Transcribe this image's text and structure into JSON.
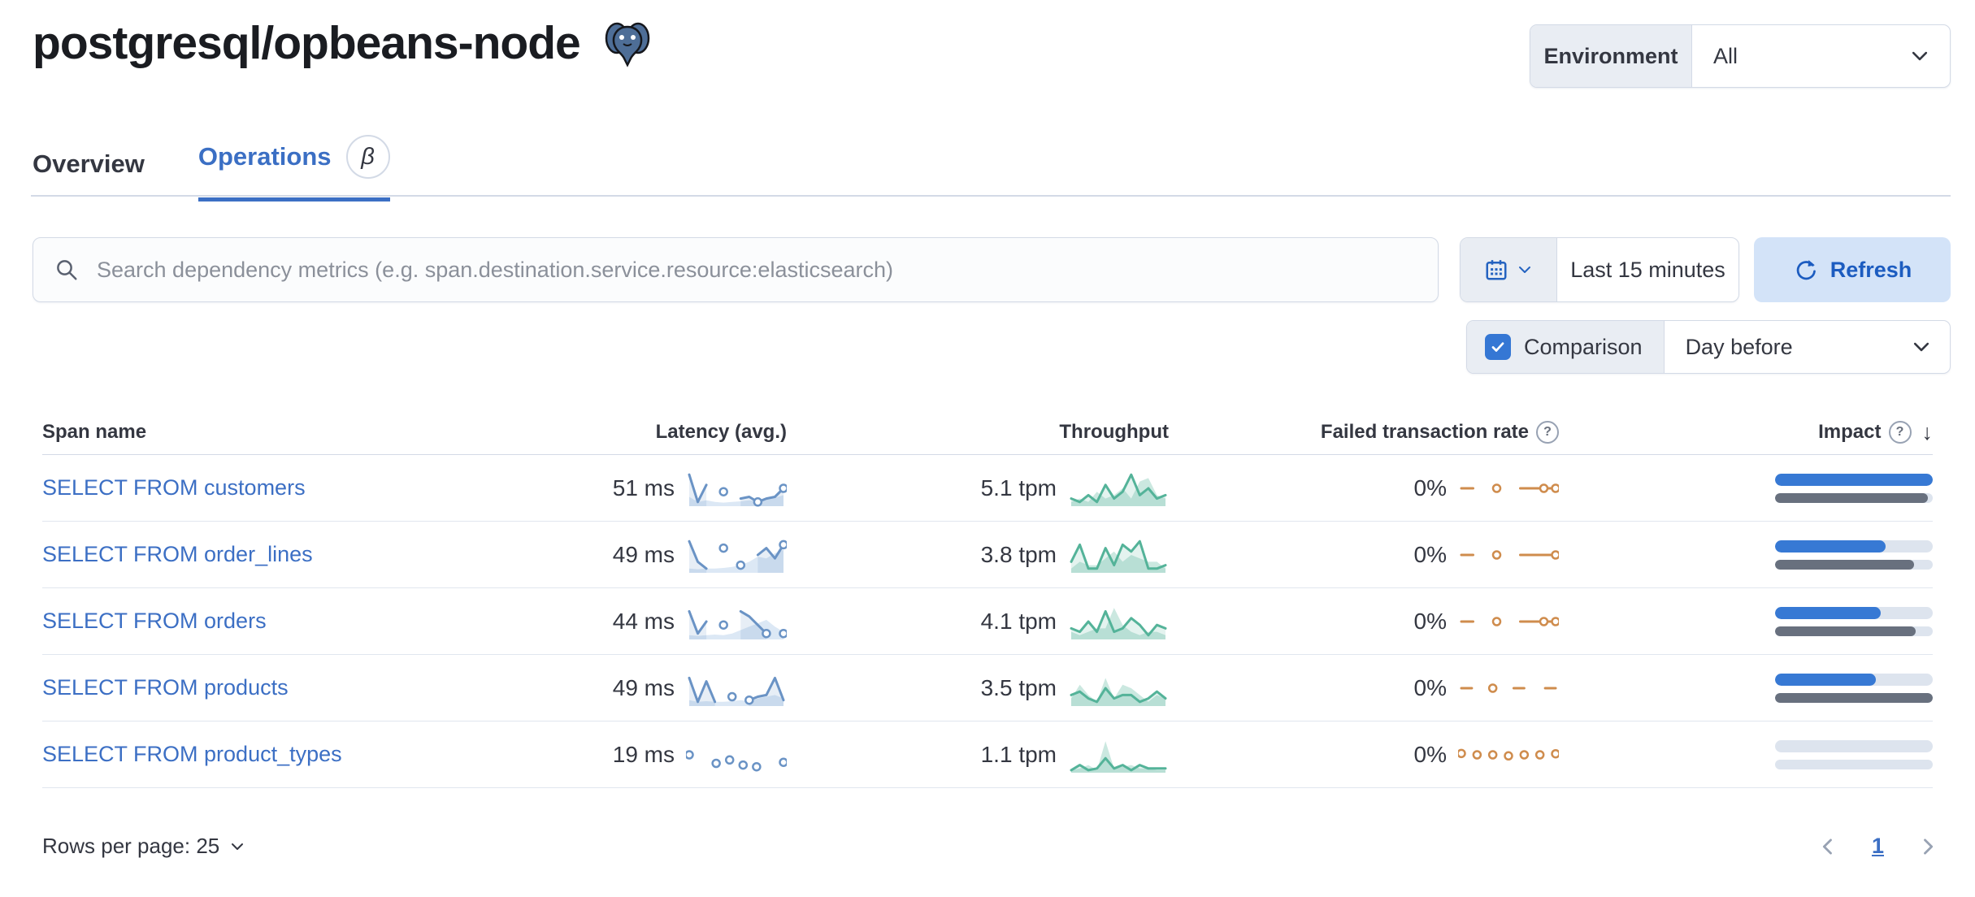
{
  "header": {
    "title": "postgresql/opbeans-node",
    "logo": "postgresql-elephant-icon",
    "environment_label": "Environment",
    "environment_value": "All"
  },
  "tabs": [
    {
      "label": "Overview",
      "active": false
    },
    {
      "label": "Operations",
      "active": true,
      "beta": "β"
    }
  ],
  "toolbar": {
    "search_placeholder": "Search dependency metrics (e.g. span.destination.service.resource:elasticsearch)",
    "time_range": "Last 15 minutes",
    "refresh_label": "Refresh",
    "comparison_label": "Comparison",
    "comparison_checked": true,
    "comparison_value": "Day before"
  },
  "table": {
    "columns": [
      "Span name",
      "Latency (avg.)",
      "Throughput",
      "Failed transaction rate",
      "Impact"
    ],
    "sort": {
      "column": "Impact",
      "direction": "desc"
    },
    "rows": [
      {
        "span_name": "SELECT FROM customers",
        "latency": "51 ms",
        "latency_spark": {
          "current": [
            9,
            1,
            6,
            null,
            4,
            null,
            2,
            2.5,
            1,
            2,
            2.5,
            5
          ],
          "previous": [
            2.5,
            1,
            1.5,
            1,
            0.8,
            1,
            1.2,
            1.5,
            1.2,
            1.8,
            2.2,
            3
          ],
          "markers": [
            4,
            8,
            11
          ]
        },
        "throughput": "5.1 tpm",
        "throughput_spark": {
          "current": [
            2,
            1,
            3,
            1,
            6,
            2,
            4,
            9,
            3,
            5,
            2,
            3
          ],
          "previous": [
            1,
            2,
            1,
            4,
            2,
            3,
            5,
            2,
            7,
            8,
            3,
            2
          ]
        },
        "failed_rate": "0%",
        "failed_spark": {
          "points": [
            5,
            5,
            null,
            5,
            null,
            5,
            5,
            5,
            5
          ],
          "markers": [
            3,
            7,
            8
          ]
        },
        "impact_current": 1.0,
        "impact_previous": 0.97
      },
      {
        "span_name": "SELECT FROM order_lines",
        "latency": "49 ms",
        "latency_spark": {
          "current": [
            9,
            3,
            1,
            null,
            7,
            null,
            2,
            null,
            5,
            7,
            4,
            8
          ],
          "previous": [
            1,
            0.8,
            1,
            1,
            1.2,
            1.5,
            2,
            3,
            4.5,
            4,
            5.5,
            6.5
          ],
          "markers": [
            11
          ]
        },
        "throughput": "3.8 tpm",
        "throughput_spark": {
          "current": [
            3,
            8,
            1,
            1,
            7,
            2,
            8,
            6,
            9,
            1,
            1,
            2
          ],
          "previous": [
            1,
            3,
            2,
            2,
            4,
            6,
            3,
            5,
            4,
            3,
            3,
            1
          ]
        },
        "failed_rate": "0%",
        "failed_spark": {
          "points": [
            5,
            5,
            null,
            5,
            null,
            5,
            5,
            5,
            5
          ],
          "markers": [
            3,
            8
          ]
        },
        "impact_current": 0.7,
        "impact_previous": 0.88
      },
      {
        "span_name": "SELECT FROM orders",
        "latency": "44 ms",
        "latency_spark": {
          "current": [
            8,
            1.5,
            5,
            null,
            4,
            null,
            8,
            6.5,
            4,
            1.5,
            null,
            1.5
          ],
          "previous": [
            1,
            0.8,
            1,
            1.2,
            1,
            1.5,
            2.5,
            3.5,
            4.5,
            5.5,
            3.5,
            2
          ],
          "markers": [
            4,
            9,
            11
          ]
        },
        "throughput": "4.1 tpm",
        "throughput_spark": {
          "current": [
            3,
            2,
            5,
            2,
            8,
            2,
            3,
            6,
            4,
            1,
            4,
            3
          ],
          "previous": [
            2,
            1,
            2,
            3,
            3,
            9,
            4,
            2,
            1,
            2,
            2,
            1
          ]
        },
        "failed_rate": "0%",
        "failed_spark": {
          "points": [
            5,
            5,
            null,
            5,
            null,
            5,
            5,
            5,
            5
          ],
          "markers": [
            3,
            7,
            8
          ]
        },
        "impact_current": 0.67,
        "impact_previous": 0.89
      },
      {
        "span_name": "SELECT FROM products",
        "latency": "49 ms",
        "latency_spark": {
          "current": [
            8,
            1,
            7,
            1,
            null,
            2.5,
            null,
            1.5,
            2.5,
            3,
            8,
            1.5
          ],
          "previous": [
            1.5,
            1,
            1.2,
            1,
            1,
            1.2,
            1.5,
            1.2,
            2,
            2.5,
            3,
            2
          ],
          "markers": [
            5,
            7
          ]
        },
        "throughput": "3.5 tpm",
        "throughput_spark": {
          "current": [
            3,
            4,
            2,
            1,
            5,
            2,
            3,
            3,
            1,
            2,
            4,
            2
          ],
          "previous": [
            2,
            6,
            3,
            1,
            8,
            2,
            6,
            5,
            3,
            1,
            3,
            2
          ]
        },
        "failed_rate": "0%",
        "failed_spark": {
          "points": [
            5,
            5,
            null,
            5,
            null,
            5,
            5,
            null,
            5,
            5
          ],
          "markers": [
            3
          ]
        },
        "impact_current": 0.64,
        "impact_previous": 1.0
      },
      {
        "span_name": "SELECT FROM product_types",
        "latency": "19 ms",
        "latency_spark": {
          "current": [
            5,
            null,
            2.5,
            3.5,
            2,
            1.5,
            null,
            2.8
          ],
          "previous": [],
          "line": false
        },
        "throughput": "1.1 tpm",
        "throughput_spark": {
          "current": [
            0.5,
            2,
            0.5,
            1,
            4,
            1,
            2,
            0.5,
            2,
            1,
            1,
            1
          ],
          "previous": [
            0.5,
            1,
            2,
            0.5,
            9,
            1,
            1.5,
            2,
            1,
            1,
            0.5,
            0.5
          ]
        },
        "failed_rate": "0%",
        "failed_spark": {
          "points": [
            5.4,
            5,
            5,
            4.7,
            5,
            5,
            5.3
          ],
          "line": false
        },
        "impact_current": 0.0,
        "impact_previous": 0.0
      }
    ]
  },
  "footer": {
    "rows_per_page": "Rows per page: 25",
    "page": "1"
  },
  "colors": {
    "accent_blue": "#3b6fc4",
    "link_blue": "#3c6fc4",
    "latency_spark": "#6a93c5",
    "throughput_spark": "#54b399",
    "failed_spark": "#cf8c4d",
    "impact_current": "#3779d4",
    "impact_previous": "#68707e",
    "border": "#d3dae6",
    "prepend_bg": "#e9edf3",
    "refresh_bg": "#d3e3f8"
  }
}
